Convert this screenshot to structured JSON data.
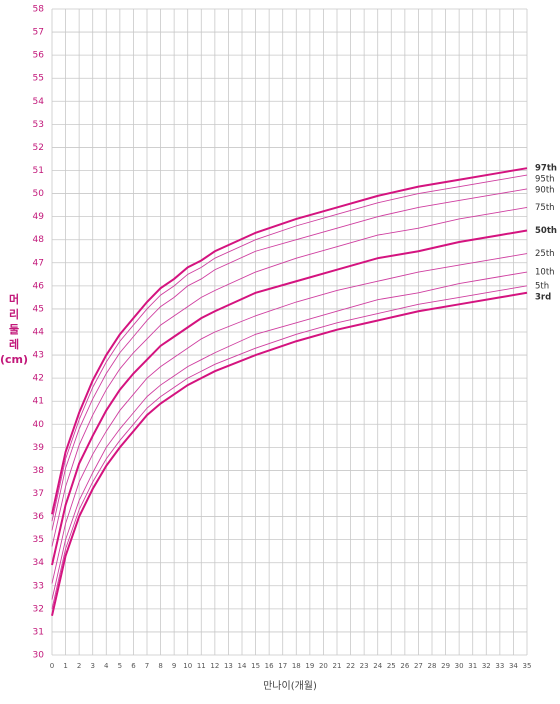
{
  "chart_data": {
    "type": "line",
    "xlabel": "만나이(개월)",
    "ylabel_lines": [
      "머",
      "리",
      "둘",
      "레",
      "(cm)"
    ],
    "x": [
      0,
      1,
      2,
      3,
      4,
      5,
      6,
      7,
      8,
      9,
      10,
      11,
      12,
      15,
      18,
      21,
      24,
      27,
      30,
      33,
      35
    ],
    "xlim": [
      0,
      35
    ],
    "xticks": [
      0,
      1,
      2,
      3,
      4,
      5,
      6,
      7,
      8,
      9,
      10,
      11,
      12,
      13,
      14,
      15,
      16,
      17,
      18,
      19,
      20,
      21,
      22,
      23,
      24,
      25,
      26,
      27,
      28,
      29,
      30,
      31,
      32,
      33,
      34,
      35
    ],
    "ylim": [
      30,
      58
    ],
    "yticks": [
      30,
      31,
      32,
      33,
      34,
      35,
      36,
      37,
      38,
      39,
      40,
      41,
      42,
      43,
      44,
      45,
      46,
      47,
      48,
      49,
      50,
      51,
      52,
      53,
      54,
      55,
      56,
      57,
      58
    ],
    "grid": true,
    "series": [
      {
        "name": "97th",
        "color": "#d4137f",
        "emphasis": true,
        "values": [
          36.1,
          38.8,
          40.5,
          41.9,
          43.0,
          43.9,
          44.6,
          45.3,
          45.9,
          46.3,
          46.8,
          47.1,
          47.5,
          48.3,
          48.9,
          49.4,
          49.9,
          50.3,
          50.6,
          50.9,
          51.1
        ]
      },
      {
        "name": "95th",
        "color": "#cf3fa0",
        "emphasis": false,
        "values": [
          35.8,
          38.5,
          40.2,
          41.6,
          42.7,
          43.6,
          44.3,
          45.0,
          45.6,
          46.0,
          46.5,
          46.8,
          47.2,
          48.0,
          48.6,
          49.1,
          49.6,
          50.0,
          50.3,
          50.6,
          50.8
        ]
      },
      {
        "name": "90th",
        "color": "#cf3fa0",
        "emphasis": false,
        "values": [
          35.4,
          38.1,
          39.8,
          41.1,
          42.2,
          43.1,
          43.8,
          44.5,
          45.1,
          45.5,
          46.0,
          46.3,
          46.7,
          47.5,
          48.0,
          48.5,
          49.0,
          49.4,
          49.7,
          50.0,
          50.2
        ]
      },
      {
        "name": "75th",
        "color": "#cf3fa0",
        "emphasis": false,
        "values": [
          34.7,
          37.3,
          39.1,
          40.4,
          41.5,
          42.4,
          43.1,
          43.7,
          44.3,
          44.7,
          45.1,
          45.5,
          45.8,
          46.6,
          47.2,
          47.7,
          48.2,
          48.5,
          48.9,
          49.2,
          49.4
        ]
      },
      {
        "name": "50th",
        "color": "#d4137f",
        "emphasis": true,
        "values": [
          33.9,
          36.5,
          38.3,
          39.5,
          40.6,
          41.5,
          42.2,
          42.8,
          43.4,
          43.8,
          44.2,
          44.6,
          44.9,
          45.7,
          46.2,
          46.7,
          47.2,
          47.5,
          47.9,
          48.2,
          48.4
        ]
      },
      {
        "name": "25th",
        "color": "#cf3fa0",
        "emphasis": false,
        "values": [
          33.1,
          35.7,
          37.5,
          38.7,
          39.7,
          40.6,
          41.3,
          42.0,
          42.5,
          42.9,
          43.3,
          43.7,
          44.0,
          44.7,
          45.3,
          45.8,
          46.2,
          46.6,
          46.9,
          47.2,
          47.4
        ]
      },
      {
        "name": "10th",
        "color": "#cf3fa0",
        "emphasis": false,
        "values": [
          32.4,
          35.0,
          36.7,
          37.9,
          39.0,
          39.8,
          40.5,
          41.2,
          41.7,
          42.1,
          42.5,
          42.8,
          43.1,
          43.9,
          44.4,
          44.9,
          45.4,
          45.7,
          46.1,
          46.4,
          46.6
        ]
      },
      {
        "name": "5th",
        "color": "#cf3fa0",
        "emphasis": false,
        "values": [
          32.0,
          34.6,
          36.3,
          37.5,
          38.5,
          39.3,
          40.0,
          40.7,
          41.2,
          41.6,
          42.0,
          42.3,
          42.6,
          43.3,
          43.9,
          44.4,
          44.8,
          45.2,
          45.5,
          45.8,
          46.0
        ]
      },
      {
        "name": "3rd",
        "color": "#d4137f",
        "emphasis": true,
        "values": [
          31.7,
          34.3,
          36.0,
          37.2,
          38.2,
          39.0,
          39.7,
          40.4,
          40.9,
          41.3,
          41.7,
          42.0,
          42.3,
          43.0,
          43.6,
          44.1,
          44.5,
          44.9,
          45.2,
          45.5,
          45.7
        ]
      }
    ]
  }
}
